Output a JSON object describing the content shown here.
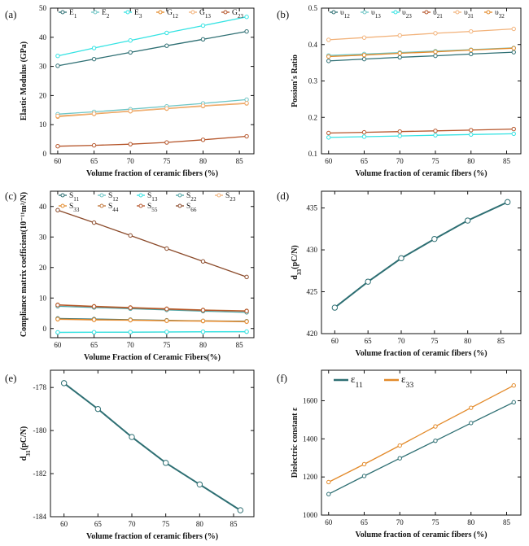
{
  "chart_data": [
    {
      "panel": "(a)",
      "type": "line",
      "xlabel": "Volume fraction of ceramic fibers (%)",
      "ylabel": "Elastic Modulus (GPa)",
      "xlim": [
        59,
        87
      ],
      "ylim": [
        0,
        50
      ],
      "xticks": [
        60,
        65,
        70,
        75,
        80,
        85
      ],
      "yticks": [
        0,
        10,
        20,
        30,
        40,
        50
      ],
      "legend_position": "top",
      "x": [
        60,
        65,
        70,
        75,
        80,
        86
      ],
      "series": [
        {
          "name": "E1",
          "color": "#2e6f73",
          "values": [
            30.2,
            32.5,
            34.8,
            37.1,
            39.3,
            42.0
          ]
        },
        {
          "name": "E2",
          "color": "#6ec6c6",
          "values": [
            13.6,
            14.4,
            15.3,
            16.3,
            17.3,
            18.6
          ]
        },
        {
          "name": "E3",
          "color": "#35e3e3",
          "values": [
            33.6,
            36.3,
            38.9,
            41.5,
            44.0,
            47.0
          ]
        },
        {
          "name": "G12",
          "color": "#e38a2a",
          "values": [
            12.8,
            13.7,
            14.6,
            15.5,
            16.4,
            17.3
          ]
        },
        {
          "name": "G13",
          "color": "#f2b27a",
          "values": [
            13.0,
            13.8,
            14.7,
            15.6,
            16.5,
            17.4
          ]
        },
        {
          "name": "G23",
          "color": "#b5552a",
          "values": [
            2.6,
            2.9,
            3.3,
            3.9,
            4.8,
            6.0
          ]
        }
      ]
    },
    {
      "panel": "(b)",
      "type": "line",
      "xlabel": "Volume fraction of ceramic fibers (%)",
      "ylabel": "Possion's Ratio",
      "xlim": [
        59,
        87
      ],
      "ylim": [
        0.1,
        0.5
      ],
      "xticks": [
        60,
        65,
        70,
        75,
        80,
        85
      ],
      "yticks": [
        0.1,
        0.2,
        0.3,
        0.4,
        0.5
      ],
      "legend_position": "top",
      "x": [
        60,
        65,
        70,
        75,
        80,
        86
      ],
      "series": [
        {
          "name": "υ12",
          "color": "#2e6f73",
          "values": [
            0.355,
            0.36,
            0.365,
            0.369,
            0.374,
            0.379
          ]
        },
        {
          "name": "υ13",
          "color": "#6ec6c6",
          "values": [
            0.37,
            0.374,
            0.378,
            0.382,
            0.386,
            0.391
          ]
        },
        {
          "name": "υ23",
          "color": "#35e3e3",
          "values": [
            0.145,
            0.147,
            0.149,
            0.151,
            0.153,
            0.155
          ]
        },
        {
          "name": "υ21",
          "color": "#b5552a",
          "values": [
            0.157,
            0.159,
            0.161,
            0.163,
            0.165,
            0.168
          ]
        },
        {
          "name": "υ31",
          "color": "#f2b27a",
          "values": [
            0.413,
            0.419,
            0.425,
            0.431,
            0.436,
            0.443
          ]
        },
        {
          "name": "υ32",
          "color": "#e38a2a",
          "values": [
            0.367,
            0.371,
            0.376,
            0.38,
            0.385,
            0.39
          ]
        }
      ]
    },
    {
      "panel": "(c)",
      "type": "line",
      "xlabel": "Volume Fraction of Ceramic Fibers(%)",
      "ylabel": "Compliance matrix coefficient(10⁻¹¹m²/N)",
      "xlim": [
        59,
        87
      ],
      "ylim": [
        -3,
        45
      ],
      "xticks": [
        60,
        65,
        70,
        75,
        80,
        85
      ],
      "yticks": [
        0,
        10,
        20,
        30,
        40
      ],
      "legend_position": "top",
      "x": [
        60,
        65,
        70,
        75,
        80,
        86
      ],
      "series": [
        {
          "name": "S11",
          "color": "#2e6f73",
          "values": [
            3.3,
            3.1,
            2.9,
            2.7,
            2.5,
            2.4
          ]
        },
        {
          "name": "S12",
          "color": "#6ec6c6",
          "values": [
            -1.3,
            -1.25,
            -1.2,
            -1.15,
            -1.1,
            -1.05
          ]
        },
        {
          "name": "S13",
          "color": "#35e3e3",
          "values": [
            -1.25,
            -1.2,
            -1.15,
            -1.1,
            -1.05,
            -1.0
          ]
        },
        {
          "name": "S22",
          "color": "#4fa3a3",
          "values": [
            7.3,
            6.9,
            6.5,
            6.1,
            5.7,
            5.3
          ]
        },
        {
          "name": "S23",
          "color": "#f2b27a",
          "values": [
            3.0,
            2.8,
            2.7,
            2.5,
            2.4,
            2.2
          ]
        },
        {
          "name": "S33",
          "color": "#e38a2a",
          "values": [
            3.1,
            2.9,
            2.8,
            2.6,
            2.5,
            2.3
          ]
        },
        {
          "name": "S44",
          "color": "#c0763a",
          "values": [
            7.8,
            7.3,
            6.9,
            6.5,
            6.1,
            5.8
          ]
        },
        {
          "name": "S55",
          "color": "#b5552a",
          "values": [
            7.7,
            7.2,
            6.8,
            6.4,
            6.0,
            5.7
          ]
        },
        {
          "name": "S66",
          "color": "#8b4a2a",
          "values": [
            38.8,
            34.7,
            30.5,
            26.2,
            22.0,
            16.9
          ]
        }
      ]
    },
    {
      "panel": "(d)",
      "type": "line",
      "xlabel": "Volume fraction of ceramic fibers (%)",
      "ylabel": "d33(pC/N)",
      "xlim": [
        58,
        88
      ],
      "ylim": [
        420,
        437
      ],
      "xticks": [
        60,
        65,
        70,
        75,
        80,
        85
      ],
      "yticks": [
        420,
        425,
        430,
        435
      ],
      "x": [
        60,
        65,
        70,
        75,
        80,
        86
      ],
      "series": [
        {
          "name": "",
          "color": "#2e6f73",
          "values": [
            423.1,
            426.2,
            429.0,
            431.3,
            433.5,
            435.7
          ]
        }
      ]
    },
    {
      "panel": "(e)",
      "type": "line",
      "xlabel": "Volume fraction of ceramic fibers (%)",
      "ylabel": "d31(pC/N)",
      "xlim": [
        58,
        88
      ],
      "ylim": [
        -184,
        -177.2
      ],
      "xticks": [
        60,
        65,
        70,
        75,
        80,
        85
      ],
      "yticks": [
        -184,
        -182,
        -180,
        -178
      ],
      "x": [
        60,
        65,
        70,
        75,
        80,
        86
      ],
      "series": [
        {
          "name": "",
          "color": "#2e6f73",
          "values": [
            -177.8,
            -179.0,
            -180.3,
            -181.5,
            -182.5,
            -183.7
          ]
        }
      ]
    },
    {
      "panel": "(f)",
      "type": "line",
      "xlabel": "Volume fraction of ceramic fibers (%)",
      "ylabel": "Dielectric constant  ε",
      "xlim": [
        59,
        87
      ],
      "ylim": [
        1000,
        1760
      ],
      "xticks": [
        60,
        65,
        70,
        75,
        80,
        85
      ],
      "yticks": [
        1000,
        1200,
        1400,
        1600
      ],
      "legend_position": "top-left",
      "x": [
        60,
        65,
        70,
        75,
        80,
        86
      ],
      "series": [
        {
          "name": "ε11",
          "color": "#2e6f73",
          "values": [
            1110,
            1205,
            1298,
            1390,
            1483,
            1592
          ]
        },
        {
          "name": "ε33",
          "color": "#e38a2a",
          "values": [
            1173,
            1267,
            1365,
            1465,
            1563,
            1680
          ]
        }
      ]
    }
  ]
}
